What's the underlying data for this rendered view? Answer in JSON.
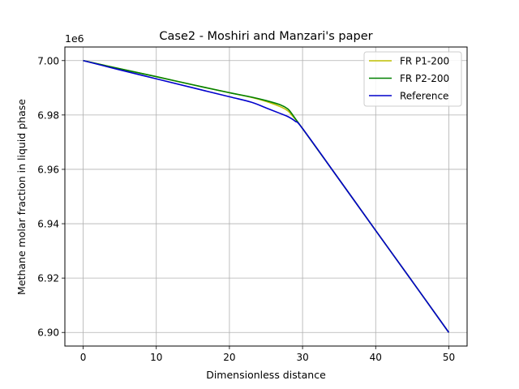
{
  "chart_data": {
    "type": "line",
    "title": "Case2 - Moshiri and Manzari's paper",
    "xlabel": "Dimensionless distance",
    "ylabel": "Methane molar fraction in liquid phase",
    "offset_label": "1e6",
    "xlim": [
      -2.5,
      52.5
    ],
    "ylim": [
      6.895,
      7.005
    ],
    "x_ticks": [
      0,
      10,
      20,
      30,
      40,
      50
    ],
    "x_tick_labels": [
      "0",
      "10",
      "20",
      "30",
      "40",
      "50"
    ],
    "y_ticks": [
      6.9,
      6.92,
      6.94,
      6.96,
      6.98,
      7.0
    ],
    "y_tick_labels": [
      "6.90",
      "6.92",
      "6.94",
      "6.96",
      "6.98",
      "7.00"
    ],
    "grid": true,
    "legend_position": "top-right",
    "series": [
      {
        "name": "FR P1-200",
        "color": "#bfbf00",
        "x": [
          0,
          5,
          10,
          15,
          20,
          23,
          25,
          27,
          28,
          28.5,
          29,
          30,
          35,
          40,
          45,
          50
        ],
        "y": [
          7.0,
          6.997,
          6.9941,
          6.9911,
          6.9882,
          6.9865,
          6.985,
          6.983,
          6.9815,
          6.98,
          6.9785,
          6.975,
          6.9563,
          6.9375,
          6.9188,
          6.9
        ]
      },
      {
        "name": "FR P2-200",
        "color": "#008000",
        "x": [
          0,
          5,
          10,
          15,
          20,
          23,
          25,
          27,
          28,
          28.5,
          29,
          30,
          35,
          40,
          45,
          50
        ],
        "y": [
          7.0,
          6.997,
          6.9941,
          6.9911,
          6.9882,
          6.9866,
          6.9853,
          6.9837,
          6.9822,
          6.9806,
          6.9787,
          6.975,
          6.9563,
          6.9375,
          6.9188,
          6.9
        ]
      },
      {
        "name": "Reference",
        "color": "#0000cc",
        "x": [
          0,
          5,
          10,
          15,
          20,
          23,
          25,
          27,
          28,
          29,
          30,
          35,
          40,
          45,
          50
        ],
        "y": [
          7.0,
          6.9966,
          6.9933,
          6.99,
          6.9867,
          6.9847,
          6.9826,
          6.9805,
          6.9794,
          6.9777,
          6.975,
          6.9563,
          6.9375,
          6.9188,
          6.9
        ]
      }
    ]
  }
}
